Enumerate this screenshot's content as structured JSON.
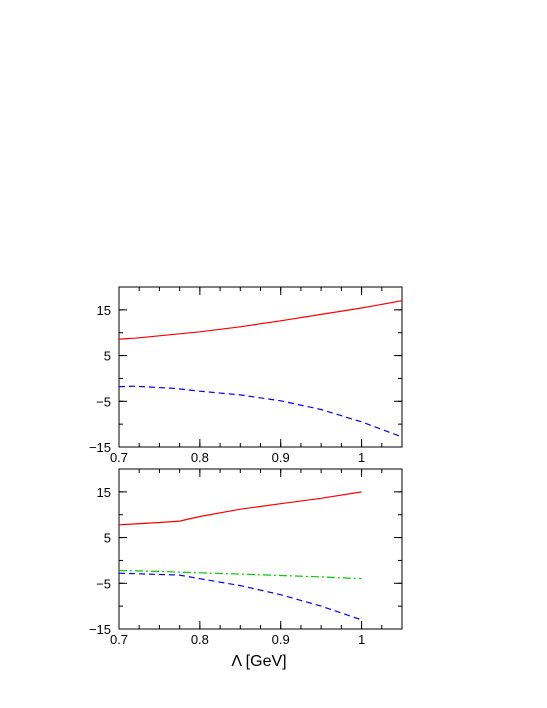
{
  "chart_data": [
    {
      "type": "line",
      "title": "",
      "xlabel": "",
      "ylabel": "",
      "xlim": [
        0.7,
        1.05
      ],
      "ylim": [
        -15,
        20
      ],
      "xticks": [
        0.7,
        0.8,
        0.9,
        1.0
      ],
      "xtick_labels": [
        "0.7",
        "0.8",
        "0.9",
        "1"
      ],
      "yticks": [
        -15,
        -5,
        5,
        15
      ],
      "ytick_labels": [
        "−15",
        "−5",
        "5",
        "15"
      ],
      "grid": false,
      "series": [
        {
          "color": "#ff0000",
          "dash": "solid",
          "x": [
            0.7,
            0.72,
            0.8,
            0.85,
            0.9,
            0.95,
            1.0,
            1.05
          ],
          "y": [
            8.6,
            8.8,
            10.2,
            11.3,
            12.6,
            14.0,
            15.4,
            17.0
          ]
        },
        {
          "color": "#0000ff",
          "dash": "dashed",
          "x": [
            0.7,
            0.72,
            0.77,
            0.8,
            0.85,
            0.9,
            0.95,
            1.0,
            1.05
          ],
          "y": [
            -1.8,
            -1.7,
            -2.2,
            -2.8,
            -3.6,
            -4.9,
            -6.8,
            -9.5,
            -12.8
          ]
        }
      ]
    },
    {
      "type": "line",
      "title": "",
      "xlabel": "Λ [GeV]",
      "ylabel": "",
      "xlim": [
        0.7,
        1.05
      ],
      "ylim": [
        -15,
        20
      ],
      "xticks": [
        0.7,
        0.8,
        0.9,
        1.0
      ],
      "xtick_labels": [
        "0.7",
        "0.8",
        "0.9",
        "1"
      ],
      "yticks": [
        -15,
        -5,
        5,
        15
      ],
      "ytick_labels": [
        "−15",
        "−5",
        "5",
        "15"
      ],
      "grid": false,
      "series": [
        {
          "color": "#ff0000",
          "dash": "solid",
          "x": [
            0.7,
            0.75,
            0.775,
            0.8,
            0.85,
            0.9,
            0.95,
            1.0
          ],
          "y": [
            7.8,
            8.3,
            8.6,
            9.6,
            11.2,
            12.4,
            13.6,
            15.0
          ]
        },
        {
          "color": "#00cc00",
          "dash": "dashdot",
          "x": [
            0.7,
            0.75,
            0.8,
            0.85,
            0.9,
            0.95,
            1.0
          ],
          "y": [
            -2.2,
            -2.4,
            -2.7,
            -3.0,
            -3.3,
            -3.6,
            -4.0
          ]
        },
        {
          "color": "#0000ff",
          "dash": "dashed",
          "x": [
            0.7,
            0.72,
            0.775,
            0.8,
            0.85,
            0.9,
            0.95,
            1.0
          ],
          "y": [
            -2.8,
            -2.9,
            -3.2,
            -4.0,
            -5.5,
            -7.5,
            -10.0,
            -13.0
          ]
        }
      ]
    }
  ]
}
